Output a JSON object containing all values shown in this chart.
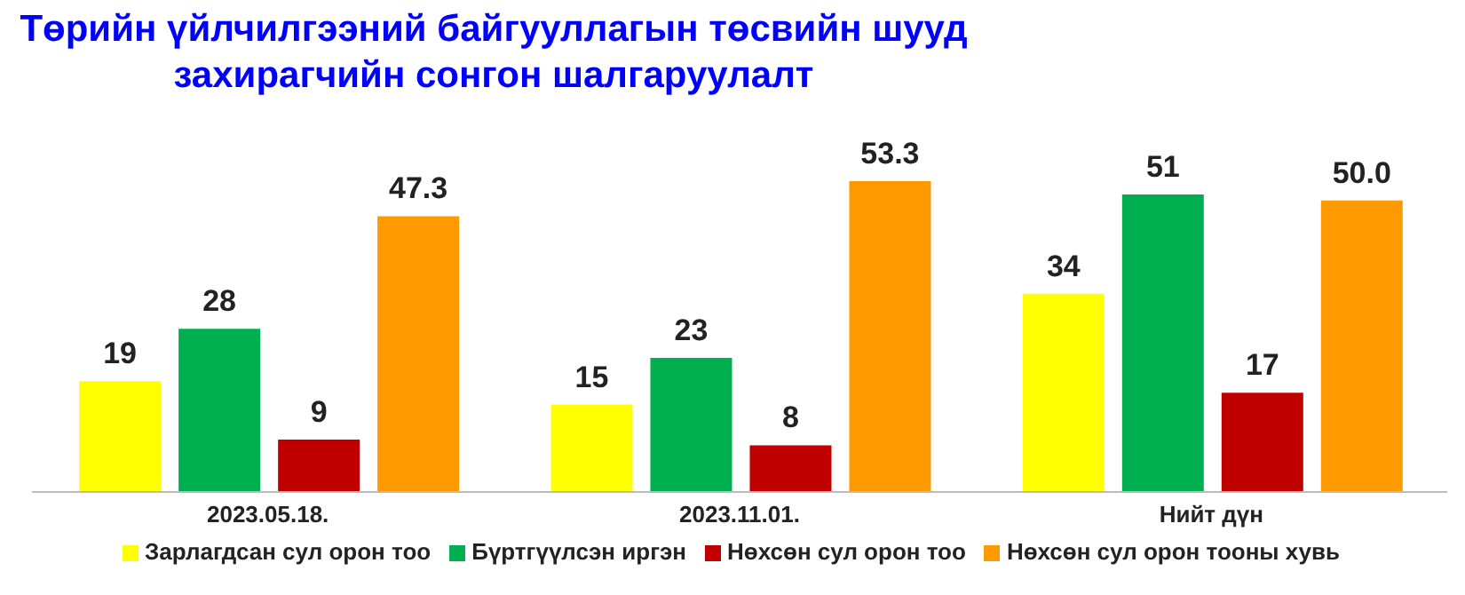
{
  "chart_data": {
    "type": "bar",
    "title": "Төрийн үйлчилгээний байгууллагын төсвийн шууд\nзахирагчийн сонгон шалгаруулалт",
    "categories": [
      "2023.05.18.",
      "2023.11.01.",
      "Нийт дүн"
    ],
    "series": [
      {
        "name": "Зарлагдсан сул орон тоо",
        "color": "#ffff00",
        "values": [
          19,
          15,
          34
        ],
        "value_labels": [
          "19",
          "15",
          "34"
        ]
      },
      {
        "name": "Бүртгүүлсэн иргэн",
        "color": "#00b050",
        "values": [
          28,
          23,
          51
        ],
        "value_labels": [
          "28",
          "23",
          "51"
        ]
      },
      {
        "name": "Нөхсөн сул орон тоо",
        "color": "#c00000",
        "values": [
          9,
          8,
          17
        ],
        "value_labels": [
          "9",
          "8",
          "17"
        ]
      },
      {
        "name": "Нөхсөн сул орон тооны хувь",
        "color": "#ff9900",
        "values": [
          47.3,
          53.3,
          50.0
        ],
        "value_labels": [
          "47.3",
          "53.3",
          "50.0"
        ]
      }
    ],
    "legend": "bottom",
    "grid": false
  }
}
